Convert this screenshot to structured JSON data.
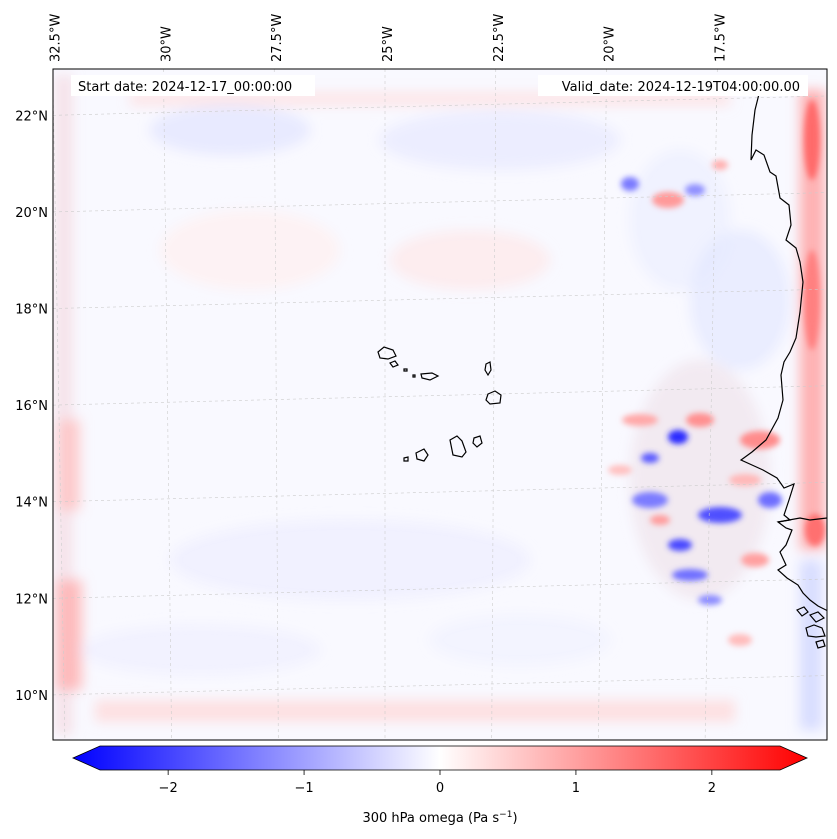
{
  "map": {
    "start_label": "Start date: 2024-12-17_00:00:00",
    "valid_label": "Valid_date: 2024-12-19T04:00:00.00",
    "lon_labels": [
      {
        "lon": -32.5,
        "text": "32.5°W"
      },
      {
        "lon": -30.0,
        "text": "30°W"
      },
      {
        "lon": -27.5,
        "text": "27.5°W"
      },
      {
        "lon": -25.0,
        "text": "25°W"
      },
      {
        "lon": -22.5,
        "text": "22.5°W"
      },
      {
        "lon": -20.0,
        "text": "20°W"
      },
      {
        "lon": -17.5,
        "text": "17.5°W"
      }
    ],
    "lat_labels": [
      {
        "lat": 22,
        "text": "22°N"
      },
      {
        "lat": 20,
        "text": "20°N"
      },
      {
        "lat": 18,
        "text": "18°N"
      },
      {
        "lat": 16,
        "text": "16°N"
      },
      {
        "lat": 14,
        "text": "14°N"
      },
      {
        "lat": 12,
        "text": "12°N"
      },
      {
        "lat": 10,
        "text": "10°N"
      }
    ]
  },
  "colorbar": {
    "label": "300 hPa omega (Pa s",
    "label_sup": "−1",
    "label_end": ")",
    "min": -2.7,
    "max": 2.7,
    "ticks": [
      {
        "value": -2,
        "text": "−2"
      },
      {
        "value": -1,
        "text": "−1"
      },
      {
        "value": 0,
        "text": "0"
      },
      {
        "value": 1,
        "text": "1"
      },
      {
        "value": 2,
        "text": "2"
      }
    ],
    "colors": {
      "negative": "#0000ff",
      "zero": "#ffffff",
      "positive": "#ff0000"
    }
  }
}
